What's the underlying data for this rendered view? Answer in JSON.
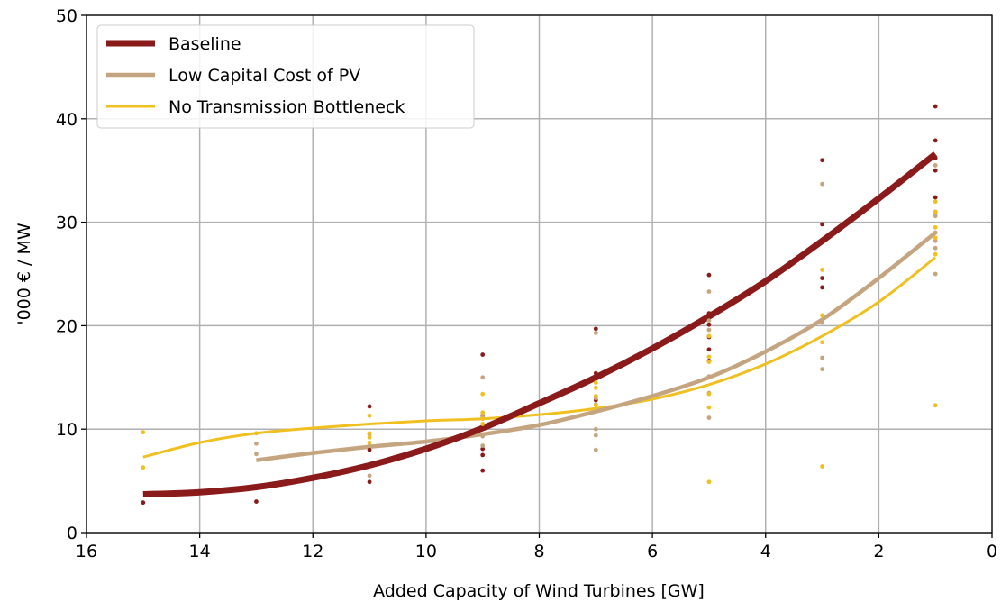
{
  "chart_data": {
    "type": "scatter",
    "xlabel": "Added Capacity of Wind Turbines [GW]",
    "ylabel": "'000 € / MW",
    "xlim": [
      16,
      0
    ],
    "ylim": [
      0,
      50
    ],
    "x_ticks": [
      "16",
      "14",
      "12",
      "10",
      "8",
      "6",
      "4",
      "2",
      "0"
    ],
    "y_ticks": [
      "0",
      "10",
      "20",
      "30",
      "40",
      "50"
    ],
    "grid": true,
    "legend_position": "top-left",
    "series": [
      {
        "name": "Baseline",
        "color": "#8b1a1a",
        "points": [
          [
            15,
            2.9
          ],
          [
            13,
            3.0
          ],
          [
            11,
            12.2
          ],
          [
            11,
            8.0
          ],
          [
            11,
            4.9
          ],
          [
            9,
            17.2
          ],
          [
            9,
            11.3
          ],
          [
            9,
            8.1
          ],
          [
            9,
            7.5
          ],
          [
            9,
            6.0
          ],
          [
            7,
            19.7
          ],
          [
            7,
            15.4
          ],
          [
            7,
            15.0
          ],
          [
            7,
            12.8
          ],
          [
            5,
            24.9
          ],
          [
            5,
            21.2
          ],
          [
            5,
            20.1
          ],
          [
            5,
            18.9
          ],
          [
            5,
            17.7
          ],
          [
            5,
            16.6
          ],
          [
            3,
            36.0
          ],
          [
            3,
            29.8
          ],
          [
            3,
            24.6
          ],
          [
            3,
            23.7
          ],
          [
            1,
            41.2
          ],
          [
            1,
            37.9
          ],
          [
            1,
            36.2
          ],
          [
            1,
            35.0
          ],
          [
            1,
            32.4
          ],
          [
            1,
            31.0
          ]
        ],
        "fit": [
          [
            15,
            3.7
          ],
          [
            14,
            3.9
          ],
          [
            13,
            4.4
          ],
          [
            12,
            5.3
          ],
          [
            11,
            6.5
          ],
          [
            10,
            8.1
          ],
          [
            9,
            10.1
          ],
          [
            8,
            12.5
          ],
          [
            7,
            15.0
          ],
          [
            6,
            17.8
          ],
          [
            5,
            20.9
          ],
          [
            4,
            24.3
          ],
          [
            3,
            28.2
          ],
          [
            2,
            32.3
          ],
          [
            1,
            36.6
          ]
        ]
      },
      {
        "name": "Low Capital Cost of PV",
        "color": "#c4a57f",
        "points": [
          [
            13,
            8.6
          ],
          [
            13,
            7.6
          ],
          [
            11,
            9.5
          ],
          [
            11,
            8.4
          ],
          [
            11,
            5.5
          ],
          [
            9,
            15.0
          ],
          [
            9,
            11.2
          ],
          [
            9,
            9.3
          ],
          [
            9,
            8.4
          ],
          [
            7,
            19.3
          ],
          [
            7,
            13.0
          ],
          [
            7,
            12.4
          ],
          [
            7,
            10.0
          ],
          [
            7,
            9.4
          ],
          [
            7,
            8.0
          ],
          [
            5,
            23.3
          ],
          [
            5,
            20.5
          ],
          [
            5,
            19.6
          ],
          [
            5,
            15.1
          ],
          [
            5,
            13.5
          ],
          [
            5,
            11.1
          ],
          [
            3,
            33.7
          ],
          [
            3,
            20.3
          ],
          [
            3,
            16.9
          ],
          [
            3,
            15.8
          ],
          [
            1,
            35.5
          ],
          [
            1,
            30.6
          ],
          [
            1,
            29.0
          ],
          [
            1,
            28.2
          ],
          [
            1,
            27.5
          ],
          [
            1,
            25.0
          ]
        ],
        "fit": [
          [
            13,
            7.0
          ],
          [
            12,
            7.7
          ],
          [
            11,
            8.3
          ],
          [
            10,
            8.8
          ],
          [
            9,
            9.5
          ],
          [
            8,
            10.4
          ],
          [
            7,
            11.7
          ],
          [
            6,
            13.2
          ],
          [
            5,
            15.0
          ],
          [
            4,
            17.5
          ],
          [
            3,
            20.6
          ],
          [
            2,
            24.6
          ],
          [
            1,
            29.0
          ]
        ]
      },
      {
        "name": "No Transmission Bottleneck",
        "color": "#f0c020",
        "points": [
          [
            15,
            9.7
          ],
          [
            15,
            6.3
          ],
          [
            13,
            9.6
          ],
          [
            11,
            11.3
          ],
          [
            11,
            9.6
          ],
          [
            11,
            9.2
          ],
          [
            11,
            8.7
          ],
          [
            9,
            13.4
          ],
          [
            9,
            11.6
          ],
          [
            9,
            11.0
          ],
          [
            9,
            10.5
          ],
          [
            7,
            14.5
          ],
          [
            7,
            14.0
          ],
          [
            7,
            13.2
          ],
          [
            7,
            12.3
          ],
          [
            5,
            19.0
          ],
          [
            5,
            17.0
          ],
          [
            5,
            16.5
          ],
          [
            5,
            13.4
          ],
          [
            5,
            12.1
          ],
          [
            5,
            4.9
          ],
          [
            3,
            25.4
          ],
          [
            3,
            21.0
          ],
          [
            3,
            18.4
          ],
          [
            3,
            6.4
          ],
          [
            1,
            32.0
          ],
          [
            1,
            31.0
          ],
          [
            1,
            29.5
          ],
          [
            1,
            28.5
          ],
          [
            1,
            26.9
          ],
          [
            1,
            12.3
          ]
        ],
        "fit": [
          [
            15,
            7.3
          ],
          [
            14,
            8.7
          ],
          [
            13,
            9.6
          ],
          [
            12,
            10.1
          ],
          [
            11,
            10.5
          ],
          [
            10,
            10.8
          ],
          [
            9,
            11.0
          ],
          [
            8,
            11.4
          ],
          [
            7,
            12.0
          ],
          [
            6,
            12.9
          ],
          [
            5,
            14.3
          ],
          [
            4,
            16.3
          ],
          [
            3,
            19.0
          ],
          [
            2,
            22.3
          ],
          [
            1,
            26.6
          ]
        ]
      }
    ]
  }
}
